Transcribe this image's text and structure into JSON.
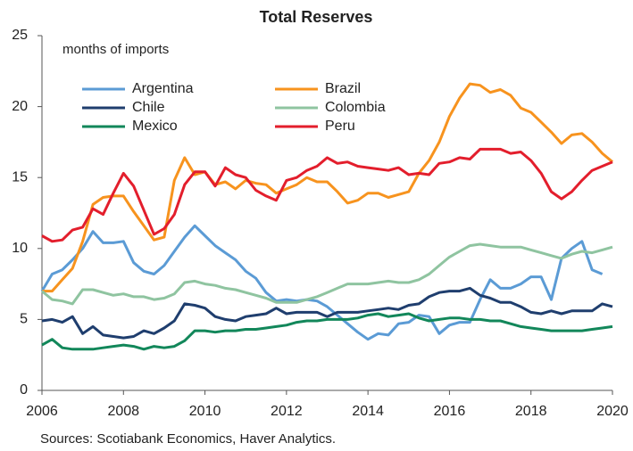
{
  "chart_data": {
    "type": "line",
    "title": "Total Reserves",
    "annotation": "months of imports",
    "source": "Sources: Scotiabank Economics, Haver Analytics.",
    "x": [
      2006,
      2006.25,
      2006.5,
      2006.75,
      2007,
      2007.25,
      2007.5,
      2007.75,
      2008,
      2008.25,
      2008.5,
      2008.75,
      2009,
      2009.25,
      2009.5,
      2009.75,
      2010,
      2010.25,
      2010.5,
      2010.75,
      2011,
      2011.25,
      2011.5,
      2011.75,
      2012,
      2012.25,
      2012.5,
      2012.75,
      2013,
      2013.25,
      2013.5,
      2013.75,
      2014,
      2014.25,
      2014.5,
      2014.75,
      2015,
      2015.25,
      2015.5,
      2015.75,
      2016,
      2016.25,
      2016.5,
      2016.75,
      2017,
      2017.25,
      2017.5,
      2017.75,
      2018,
      2018.25,
      2018.5,
      2018.75,
      2019,
      2019.25,
      2019.5,
      2019.75,
      2020
    ],
    "series": [
      {
        "name": "Argentina",
        "color": "#5b9bd5",
        "values": [
          7,
          8.2,
          8.5,
          9.2,
          10,
          11.2,
          10.4,
          10.4,
          10.5,
          9,
          8.4,
          8.2,
          8.8,
          9.8,
          10.8,
          11.6,
          10.9,
          10.2,
          9.7,
          9.2,
          8.4,
          7.9,
          6.9,
          6.3,
          6.4,
          6.3,
          6.4,
          6.3,
          5.9,
          5.3,
          4.7,
          4.1,
          3.6,
          4.0,
          3.9,
          4.7,
          4.8,
          5.3,
          5.2,
          4.0,
          4.6,
          4.8,
          4.8,
          6.4,
          7.8,
          7.2,
          7.2,
          7.5,
          8.0,
          8.0,
          6.4,
          9.3,
          10.0,
          10.5,
          8.5,
          8.2,
          null
        ]
      },
      {
        "name": "Brazil",
        "color": "#f7931e",
        "values": [
          7,
          7,
          7.8,
          8.6,
          10.5,
          13.1,
          13.6,
          13.7,
          13.7,
          12.6,
          11.6,
          10.6,
          10.8,
          14.8,
          16.4,
          15.2,
          15.4,
          14.5,
          14.7,
          14.2,
          14.8,
          14.6,
          14.5,
          13.9,
          14.2,
          14.5,
          15.0,
          14.7,
          14.7,
          14.0,
          13.2,
          13.4,
          13.9,
          13.9,
          13.6,
          13.8,
          14.0,
          15.3,
          16.2,
          17.5,
          19.3,
          20.6,
          21.6,
          21.5,
          21.0,
          21.2,
          20.8,
          19.9,
          19.6,
          18.9,
          18.2,
          17.4,
          18.0,
          18.1,
          17.5,
          16.7,
          16.1
        ]
      },
      {
        "name": "Chile",
        "color": "#1f3e6e",
        "values": [
          4.9,
          5.0,
          4.8,
          5.2,
          4.0,
          4.5,
          3.9,
          3.8,
          3.7,
          3.8,
          4.2,
          4.0,
          4.4,
          4.9,
          6.1,
          6.0,
          5.8,
          5.2,
          5.0,
          4.9,
          5.2,
          5.3,
          5.4,
          5.8,
          5.4,
          5.5,
          5.5,
          5.5,
          5.2,
          5.5,
          5.5,
          5.5,
          5.6,
          5.7,
          5.8,
          5.7,
          6.0,
          6.1,
          6.6,
          6.9,
          7.0,
          7.0,
          7.2,
          6.7,
          6.5,
          6.2,
          6.2,
          5.9,
          5.5,
          5.4,
          5.6,
          5.4,
          5.6,
          5.6,
          5.6,
          6.1,
          5.9
        ]
      },
      {
        "name": "Colombia",
        "color": "#8fc4a0",
        "values": [
          7,
          6.4,
          6.3,
          6.1,
          7.1,
          7.1,
          6.9,
          6.7,
          6.8,
          6.6,
          6.6,
          6.4,
          6.5,
          6.8,
          7.6,
          7.7,
          7.5,
          7.4,
          7.2,
          7.1,
          6.9,
          6.7,
          6.5,
          6.2,
          6.2,
          6.2,
          6.4,
          6.6,
          6.9,
          7.2,
          7.5,
          7.5,
          7.5,
          7.6,
          7.7,
          7.6,
          7.6,
          7.8,
          8.2,
          8.8,
          9.4,
          9.8,
          10.2,
          10.3,
          10.2,
          10.1,
          10.1,
          10.1,
          9.9,
          9.7,
          9.5,
          9.3,
          9.6,
          9.8,
          9.7,
          9.9,
          10.1
        ]
      },
      {
        "name": "Mexico",
        "color": "#12875a",
        "values": [
          3.2,
          3.6,
          3.0,
          2.9,
          2.9,
          2.9,
          3.0,
          3.1,
          3.2,
          3.1,
          2.9,
          3.1,
          3.0,
          3.1,
          3.5,
          4.2,
          4.2,
          4.1,
          4.2,
          4.2,
          4.3,
          4.3,
          4.4,
          4.5,
          4.6,
          4.8,
          4.9,
          4.9,
          5.0,
          5.0,
          5.0,
          5.1,
          5.3,
          5.4,
          5.2,
          5.3,
          5.4,
          5.1,
          4.9,
          5.0,
          5.1,
          5.1,
          5.0,
          5.0,
          4.9,
          4.9,
          4.7,
          4.5,
          4.4,
          4.3,
          4.2,
          4.2,
          4.2,
          4.2,
          4.3,
          4.4,
          4.5
        ]
      },
      {
        "name": "Peru",
        "color": "#e31e2c",
        "values": [
          10.9,
          10.5,
          10.6,
          11.3,
          11.5,
          12.8,
          12.4,
          13.9,
          15.3,
          14.4,
          12.7,
          11.0,
          11.4,
          12.4,
          14.5,
          15.4,
          15.4,
          14.4,
          15.7,
          15.2,
          15.0,
          14.1,
          13.7,
          13.4,
          14.8,
          15.0,
          15.5,
          15.8,
          16.4,
          16.0,
          16.1,
          15.8,
          15.7,
          15.6,
          15.5,
          15.7,
          15.2,
          15.3,
          15.2,
          16.0,
          16.1,
          16.4,
          16.3,
          17.0,
          17.0,
          17.0,
          16.7,
          16.8,
          16.2,
          15.3,
          14.0,
          13.5,
          14.0,
          14.8,
          15.5,
          15.8,
          16.1
        ]
      }
    ],
    "xlim": [
      2006,
      2020
    ],
    "xticks": [
      2006,
      2008,
      2010,
      2012,
      2014,
      2016,
      2018,
      2020
    ],
    "ylim": [
      0,
      25
    ],
    "yticks": [
      0,
      5,
      10,
      15,
      20,
      25
    ],
    "grid": false
  }
}
